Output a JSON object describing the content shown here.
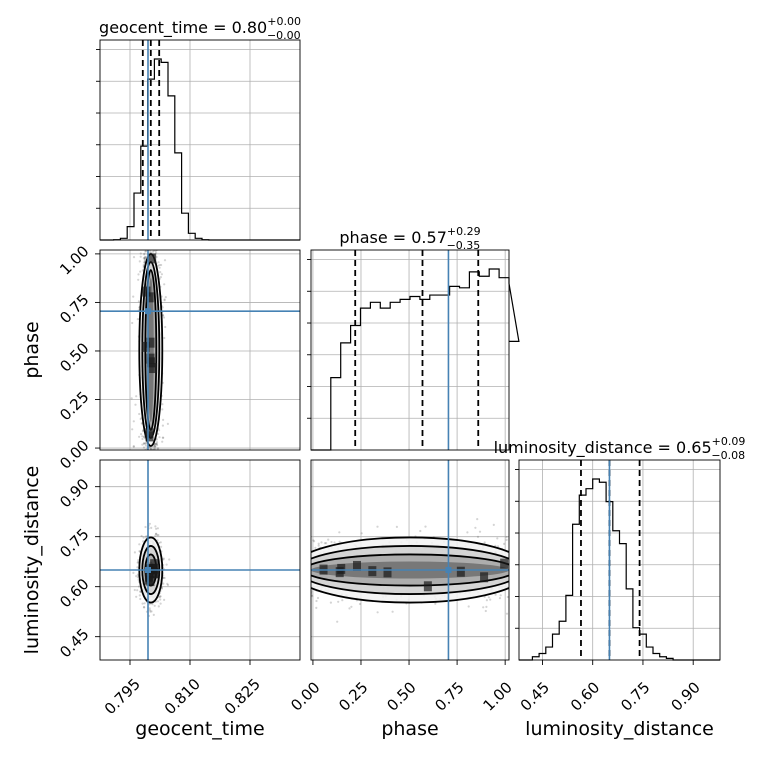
{
  "chart_data": {
    "type": "corner",
    "parameters": [
      "geocent_time",
      "phase",
      "luminosity_distance"
    ],
    "axis_labels": {
      "geocent_time": "geocent_time",
      "phase": "phase",
      "luminosity_distance": "luminosity_distance"
    },
    "ranges": {
      "geocent_time": [
        0.7875,
        0.8375
      ],
      "phase": [
        -0.01,
        1.02
      ],
      "luminosity_distance": [
        0.38,
        0.98
      ]
    },
    "ticks": {
      "geocent_time": [
        "0.795",
        "0.810",
        "0.825"
      ],
      "phase": [
        "0.00",
        "0.25",
        "0.50",
        "0.75",
        "1.00"
      ],
      "luminosity_distance_x": [
        "0.45",
        "0.60",
        "0.75",
        "0.90"
      ],
      "luminosity_distance_y": [
        "0.45",
        "0.60",
        "0.75",
        "0.90"
      ]
    },
    "truths": {
      "geocent_time": 0.7995,
      "phase": 0.705,
      "luminosity_distance": 0.65
    },
    "titles": {
      "geocent_time": {
        "text": "geocent_time = 0.80",
        "upper": "+0.00",
        "lower": "−0.00"
      },
      "phase": {
        "text": "phase = 0.57",
        "upper": "+0.29",
        "lower": "−0.35"
      },
      "luminosity_distance": {
        "text": "luminosity_distance = 0.65",
        "upper": "+0.09",
        "lower": "−0.08"
      }
    },
    "quantiles": {
      "geocent_time": [
        0.7982,
        0.8002,
        0.8023
      ],
      "phase": [
        0.22,
        0.57,
        0.86
      ],
      "luminosity_distance": [
        0.565,
        0.65,
        0.74
      ]
    },
    "histograms": {
      "geocent_time": {
        "edges_start": 0.7875,
        "bin_width": 0.0017,
        "counts": [
          0,
          0,
          1,
          5,
          40,
          140,
          280,
          480,
          540,
          530,
          430,
          260,
          80,
          20,
          5,
          1,
          0,
          0,
          0,
          0,
          0,
          0,
          0,
          0,
          0,
          0,
          0,
          0,
          0,
          0
        ]
      },
      "phase": {
        "edges_start": -0.01,
        "bin_width": 0.0515,
        "counts": [
          0,
          0,
          250,
          370,
          430,
          490,
          510,
          490,
          510,
          520,
          530,
          520,
          535,
          535,
          565,
          560,
          615,
          600,
          625,
          595,
          575,
          375
        ]
      },
      "luminosity_distance": {
        "edges_start": 0.38,
        "bin_width": 0.02,
        "counts": [
          0,
          0,
          10,
          20,
          40,
          80,
          120,
          200,
          420,
          510,
          530,
          560,
          550,
          490,
          400,
          360,
          220,
          100,
          80,
          40,
          20,
          10,
          5,
          0,
          0,
          0,
          0,
          0,
          0,
          0
        ]
      }
    },
    "density_panels": [
      {
        "x": "geocent_time",
        "y": "phase",
        "center": [
          0.8002,
          0.57
        ],
        "spread": [
          0.0025,
          0.32
        ]
      },
      {
        "x": "geocent_time",
        "y": "luminosity_distance",
        "center": [
          0.8002,
          0.65
        ],
        "spread": [
          0.0025,
          0.085
        ]
      },
      {
        "x": "phase",
        "y": "luminosity_distance",
        "center": [
          0.57,
          0.65
        ],
        "spread": [
          0.38,
          0.085
        ]
      }
    ],
    "grid": true,
    "colors": {
      "truth": "#4682b4",
      "line": "#000000",
      "grid": "#b0b0b0"
    }
  }
}
